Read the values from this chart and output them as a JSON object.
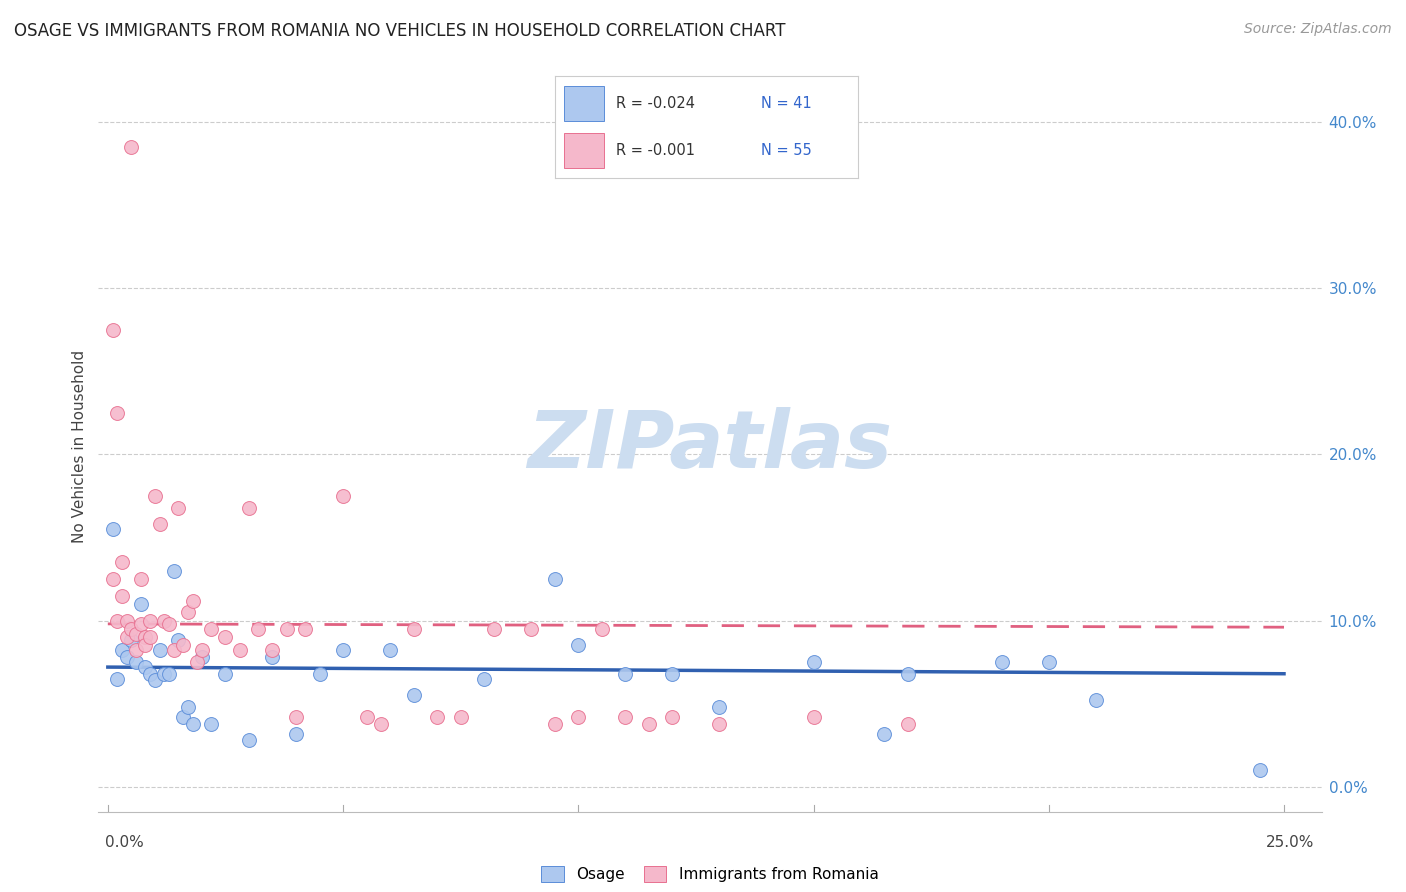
{
  "title": "OSAGE VS IMMIGRANTS FROM ROMANIA NO VEHICLES IN HOUSEHOLD CORRELATION CHART",
  "source": "Source: ZipAtlas.com",
  "ylabel": "No Vehicles in Household",
  "legend_bottom": [
    "Osage",
    "Immigrants from Romania"
  ],
  "legend_top": {
    "osage": {
      "R": "-0.024",
      "N": "41"
    },
    "romania": {
      "R": "-0.001",
      "N": "55"
    }
  },
  "osage_color": "#adc8ef",
  "osage_edge_color": "#5b8dd9",
  "osage_line_color": "#3060b0",
  "romania_color": "#f5b8cb",
  "romania_edge_color": "#e87090",
  "romania_line_color": "#e06080",
  "watermark_color": "#ccddf0",
  "background_color": "#ffffff",
  "grid_color": "#cccccc",
  "osage_x": [
    0.001,
    0.002,
    0.003,
    0.004,
    0.005,
    0.006,
    0.007,
    0.008,
    0.009,
    0.01,
    0.011,
    0.012,
    0.013,
    0.014,
    0.015,
    0.016,
    0.017,
    0.018,
    0.02,
    0.022,
    0.025,
    0.03,
    0.035,
    0.04,
    0.045,
    0.05,
    0.06,
    0.065,
    0.08,
    0.095,
    0.1,
    0.11,
    0.12,
    0.13,
    0.15,
    0.165,
    0.17,
    0.19,
    0.2,
    0.21,
    0.245
  ],
  "osage_y": [
    0.155,
    0.065,
    0.082,
    0.078,
    0.088,
    0.075,
    0.11,
    0.072,
    0.068,
    0.064,
    0.082,
    0.068,
    0.068,
    0.13,
    0.088,
    0.042,
    0.048,
    0.038,
    0.078,
    0.038,
    0.068,
    0.028,
    0.078,
    0.032,
    0.068,
    0.082,
    0.082,
    0.055,
    0.065,
    0.125,
    0.085,
    0.068,
    0.068,
    0.048,
    0.075,
    0.032,
    0.068,
    0.075,
    0.075,
    0.052,
    0.01
  ],
  "romania_x": [
    0.001,
    0.001,
    0.002,
    0.002,
    0.003,
    0.003,
    0.004,
    0.004,
    0.005,
    0.005,
    0.006,
    0.006,
    0.007,
    0.007,
    0.008,
    0.008,
    0.009,
    0.009,
    0.01,
    0.011,
    0.012,
    0.013,
    0.014,
    0.015,
    0.016,
    0.017,
    0.018,
    0.019,
    0.02,
    0.022,
    0.025,
    0.028,
    0.03,
    0.032,
    0.035,
    0.038,
    0.04,
    0.042,
    0.05,
    0.055,
    0.058,
    0.065,
    0.07,
    0.075,
    0.082,
    0.09,
    0.095,
    0.1,
    0.105,
    0.11,
    0.115,
    0.12,
    0.13,
    0.15,
    0.17
  ],
  "romania_y": [
    0.275,
    0.125,
    0.225,
    0.1,
    0.135,
    0.115,
    0.1,
    0.09,
    0.385,
    0.095,
    0.092,
    0.082,
    0.125,
    0.098,
    0.09,
    0.085,
    0.09,
    0.1,
    0.175,
    0.158,
    0.1,
    0.098,
    0.082,
    0.168,
    0.085,
    0.105,
    0.112,
    0.075,
    0.082,
    0.095,
    0.09,
    0.082,
    0.168,
    0.095,
    0.082,
    0.095,
    0.042,
    0.095,
    0.175,
    0.042,
    0.038,
    0.095,
    0.042,
    0.042,
    0.095,
    0.095,
    0.038,
    0.042,
    0.095,
    0.042,
    0.038,
    0.042,
    0.038,
    0.042,
    0.038
  ],
  "osage_trend": [
    0.0,
    0.25,
    0.072,
    0.068
  ],
  "romania_trend": [
    0.0,
    0.25,
    0.098,
    0.096
  ],
  "xlim": [
    -0.002,
    0.258
  ],
  "ylim": [
    -0.015,
    0.425
  ],
  "yticks_right": [
    0.0,
    0.1,
    0.2,
    0.3,
    0.4
  ],
  "xtick_positions": [
    0.0,
    0.05,
    0.1,
    0.15,
    0.2,
    0.25
  ],
  "marker_size": 100
}
